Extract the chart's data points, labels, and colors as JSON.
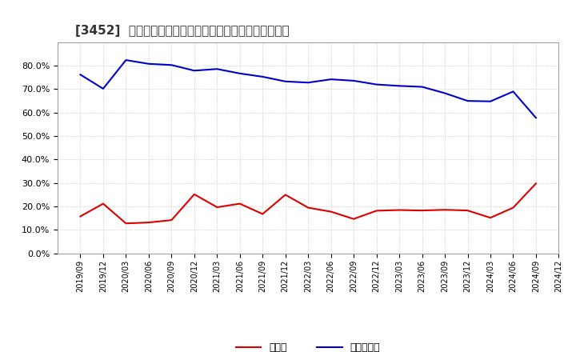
{
  "title": "[3452]  現預金、有利子負債の総資産に対する比率の推移",
  "x_labels": [
    "2019/09",
    "2019/12",
    "2020/03",
    "2020/06",
    "2020/09",
    "2020/12",
    "2021/03",
    "2021/06",
    "2021/09",
    "2021/12",
    "2022/03",
    "2022/06",
    "2022/09",
    "2022/12",
    "2023/03",
    "2023/06",
    "2023/09",
    "2023/12",
    "2024/03",
    "2024/06",
    "2024/09",
    "2024/12"
  ],
  "cash_values": [
    0.158,
    0.212,
    0.128,
    0.132,
    0.142,
    0.252,
    0.197,
    0.212,
    0.168,
    0.25,
    0.195,
    0.178,
    0.147,
    0.182,
    0.185,
    0.183,
    0.186,
    0.183,
    0.152,
    0.195,
    0.298,
    null
  ],
  "debt_values": [
    0.762,
    0.702,
    0.824,
    0.808,
    0.803,
    0.779,
    0.786,
    0.767,
    0.753,
    0.733,
    0.728,
    0.742,
    0.736,
    0.72,
    0.714,
    0.71,
    0.683,
    0.65,
    0.648,
    0.69,
    0.578,
    null
  ],
  "cash_color": "#dd0000",
  "debt_color": "#0000cc",
  "background_color": "#ffffff",
  "plot_bg_color": "#ffffff",
  "grid_color": "#aaaaaa",
  "title_color": "#333333",
  "legend_labels": [
    "現預金",
    "有利子負債"
  ],
  "ylim": [
    0.0,
    0.9
  ],
  "yticks": [
    0.0,
    0.1,
    0.2,
    0.3,
    0.4,
    0.5,
    0.6,
    0.7,
    0.8
  ]
}
